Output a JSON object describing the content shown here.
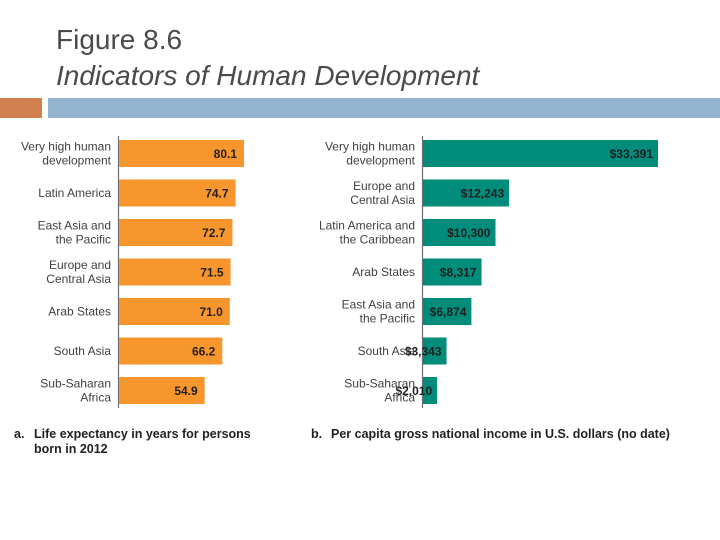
{
  "header": {
    "title_line1": "Figure 8.6",
    "title_line2": "Indicators of Human Development"
  },
  "colors": {
    "accent": "#d2804f",
    "rule": "#94b3cf",
    "life_bar": "#f7962d",
    "income_bar": "#008c7b"
  },
  "chart_data": [
    {
      "type": "bar",
      "orientation": "horizontal",
      "caption_letter": "a.",
      "caption_line1": "Life expectancy in years for persons",
      "caption_line2": "born in 2012",
      "categories": [
        "Very high human development",
        "Latin America",
        "East Asia and the Pacific",
        "Europe and Central Asia",
        "Arab States",
        "South Asia",
        "Sub-Saharan Africa"
      ],
      "category_lines": [
        [
          "Very high human",
          "development"
        ],
        [
          "Latin America"
        ],
        [
          "East Asia and",
          "the Pacific"
        ],
        [
          "Europe and",
          "Central Asia"
        ],
        [
          "Arab States"
        ],
        [
          "South Asia"
        ],
        [
          "Sub-Saharan",
          "Africa"
        ]
      ],
      "values": [
        80.1,
        74.7,
        72.7,
        71.5,
        71.0,
        66.2,
        54.9
      ],
      "value_labels": [
        "80.1",
        "74.7",
        "72.7",
        "71.5",
        "71.0",
        "66.2",
        "54.9"
      ]
    },
    {
      "type": "bar",
      "orientation": "horizontal",
      "caption_letter": "b.",
      "caption_line1": "Per capita gross national income in U.S. dollars (no date)",
      "categories": [
        "Very high human development",
        "Europe and Central Asia",
        "Latin America and the Caribbean",
        "Arab States",
        "East Asia and the Pacific",
        "South Asia",
        "Sub-Saharan Africa"
      ],
      "category_lines": [
        [
          "Very high human",
          "development"
        ],
        [
          "Europe and",
          "Central Asia"
        ],
        [
          "Latin America and",
          "the Caribbean"
        ],
        [
          "Arab States"
        ],
        [
          "East Asia and",
          "the Pacific"
        ],
        [
          "South Asia"
        ],
        [
          "Sub-Saharan",
          "Africa"
        ]
      ],
      "values": [
        33391,
        12243,
        10300,
        8317,
        6874,
        3343,
        2010
      ],
      "value_labels": [
        "$33,391",
        "$12,243",
        "$10,300",
        "$8,317",
        "$6,874",
        "$3,343",
        "$2,010"
      ]
    }
  ]
}
